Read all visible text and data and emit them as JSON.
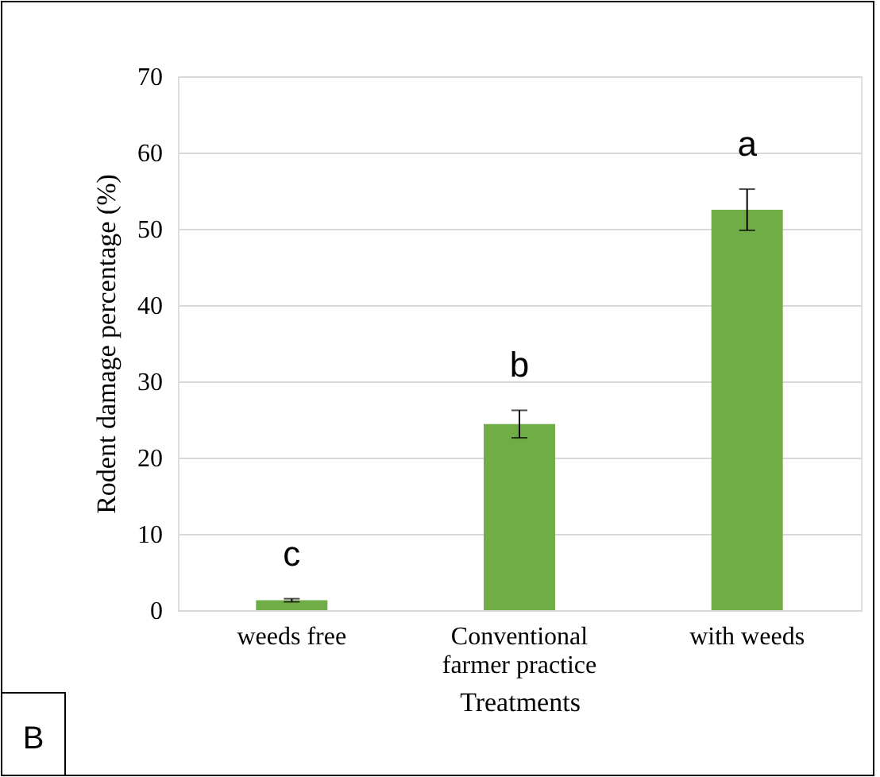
{
  "chart_data": {
    "type": "bar",
    "xlabel": "Treatments",
    "ylabel": "Rodent damage percentage (%)",
    "categories": [
      "weeds free",
      "Conventional farmer practice",
      "with weeds"
    ],
    "values": [
      1.3,
      24.4,
      52.5
    ],
    "color": "#70ad47",
    "errors": [
      0.2,
      1.8,
      2.7
    ],
    "ylim": [
      0,
      70
    ],
    "yticks": [
      0,
      10,
      20,
      30,
      40,
      50,
      60,
      70
    ],
    "grid": "y",
    "annotations": [
      "c",
      "b",
      "a",
      "B"
    ]
  }
}
